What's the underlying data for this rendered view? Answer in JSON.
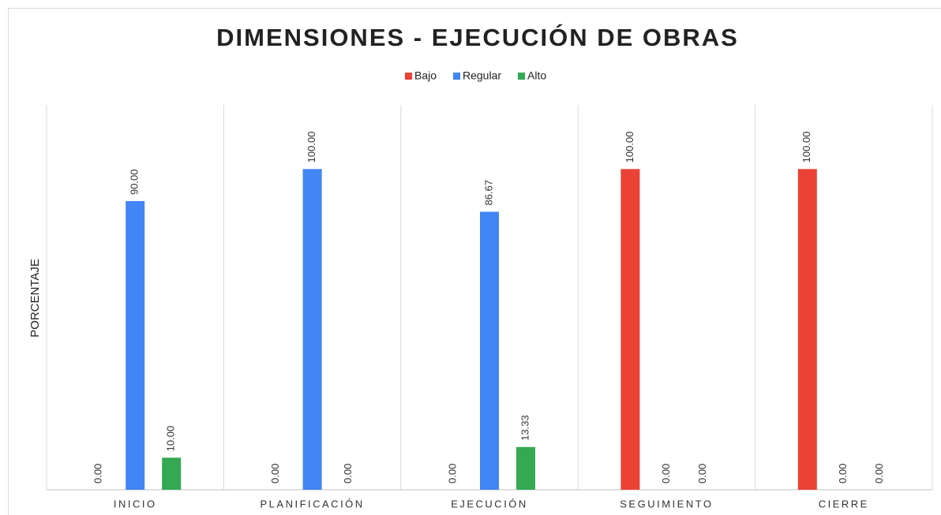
{
  "chart_data": {
    "type": "bar",
    "title": "DIMENSIONES - EJECUCIÓN DE OBRAS",
    "y_label": "PORCENTAJE",
    "categories": [
      "INICIO",
      "PLANIFICACIÓN",
      "EJECUCIÓN",
      "SEGUIMIENTO",
      "CIERRE"
    ],
    "series": [
      {
        "name": "Bajo",
        "color": "#ea4335",
        "values": [
          0,
          0,
          0,
          100,
          100
        ],
        "value_labels": [
          "0.00",
          "0.00",
          "0.00",
          "100.00",
          "100.00"
        ]
      },
      {
        "name": "Regular",
        "color": "#4285f4",
        "values": [
          90,
          100,
          86.67,
          0,
          0
        ],
        "value_labels": [
          "90.00",
          "100.00",
          "86.67",
          "0.00",
          "0.00"
        ]
      },
      {
        "name": "Alto",
        "color": "#34a853",
        "values": [
          10,
          0,
          13.33,
          0,
          0
        ],
        "value_labels": [
          "10.00",
          "0.00",
          "13.33",
          "0.00",
          "0.00"
        ]
      }
    ],
    "ylim": [
      0,
      120
    ],
    "legend": "top"
  }
}
